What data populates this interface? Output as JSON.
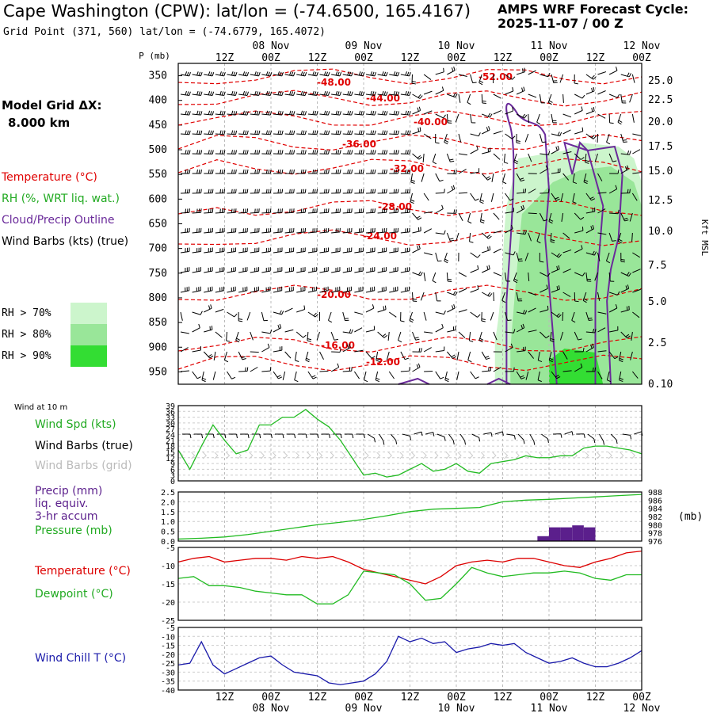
{
  "header": {
    "title": "Cape Washington (CPW):  lat/lon = (-74.6500, 165.4167)",
    "subtitle": "Grid Point (371, 560) lat/lon = (-74.6779, 165.4072)",
    "cycle_line1": "AMPS WRF Forecast Cycle:",
    "cycle_line2": "2025-11-07 / 00  Z"
  },
  "sidebar": {
    "grid_label": "Model Grid ΔX:",
    "grid_value": "8.000 km",
    "legend": [
      {
        "label": "Temperature (°C)",
        "color": "#e00000"
      },
      {
        "label": "RH (%, WRT liq. wat.)",
        "color": "#22aa22"
      },
      {
        "label": "Cloud/Precip Outline",
        "color": "#6a2a9a"
      },
      {
        "label": "Wind Barbs (kts) (true)",
        "color": "#000000"
      }
    ],
    "rh_key": [
      {
        "label": "RH > 70%",
        "color": "#ccf5cc"
      },
      {
        "label": "RH > 80%",
        "color": "#99e699"
      },
      {
        "label": "RH > 90%",
        "color": "#33dd33"
      }
    ]
  },
  "chart_data": [
    {
      "type": "cross-section",
      "id": "upper",
      "title": "P (mb)",
      "xlabel": "time",
      "ylabel": "P (mb)",
      "right_axis_label": "Kft MSL",
      "x_ticks_top": [
        "12Z",
        "00Z",
        "12Z",
        "00Z",
        "12Z",
        "00Z",
        "12Z",
        "00Z",
        "12Z",
        "00Z"
      ],
      "date_labels_top": [
        "08 Nov",
        "09 Nov",
        "10 Nov",
        "11 Nov",
        "12 Nov"
      ],
      "pressure_levels": [
        350,
        400,
        450,
        500,
        550,
        600,
        650,
        700,
        750,
        800,
        850,
        900,
        950
      ],
      "kft_ticks": [
        "25.0",
        "22.5",
        "20.0",
        "17.5",
        "15.0",
        "12.5",
        "10.0",
        "7.5",
        "5.0",
        "2.5",
        "0.10"
      ],
      "isotherm_labels": [
        "-48.00",
        "-52.00",
        "-44.00",
        "-40.00",
        "-36.00",
        "-32.00",
        "-28.00",
        "-24.00",
        "-20.00",
        "-16.00",
        "-12.00"
      ]
    },
    {
      "type": "line",
      "id": "wind",
      "label": "Wind at 10 m",
      "legend": [
        "Wind Spd (kts)",
        "Wind Barbs (true)",
        "Wind Barbs (grid)"
      ],
      "y_ticks": [
        "39",
        "36",
        "33",
        "30",
        "27",
        "24",
        "21",
        "18",
        "15",
        "12",
        "9",
        "6",
        "3",
        "0"
      ],
      "ylim": [
        0,
        39
      ],
      "x": [
        0,
        3,
        6,
        9,
        12,
        15,
        18,
        21,
        24,
        27,
        30,
        33,
        36,
        39,
        42,
        45,
        48,
        51,
        54,
        57,
        60,
        63,
        66,
        69,
        72,
        75,
        78,
        81,
        84,
        87,
        90,
        93,
        96,
        99,
        102,
        105,
        108,
        111,
        114,
        117,
        120
      ],
      "series": [
        {
          "name": "Wind Spd (kts)",
          "color": "#22bb22",
          "values": [
            16,
            6,
            18,
            29,
            21,
            14,
            16,
            29,
            29,
            33,
            33,
            37,
            32,
            28,
            21,
            12,
            3,
            4,
            2,
            3,
            6,
            9,
            5,
            6,
            9,
            5,
            4,
            9,
            10,
            11,
            13,
            12,
            12,
            13,
            13,
            17,
            18,
            18,
            17,
            16,
            14
          ]
        }
      ]
    },
    {
      "type": "bar+line",
      "id": "precip",
      "legend": [
        "Precip (mm)",
        "liq. equiv.",
        "3-hr accum",
        "Pressure (mb)"
      ],
      "y_ticks_left": [
        "2.5",
        "2.0",
        "1.5",
        "1.0",
        "0.5",
        "0.0"
      ],
      "y_ticks_right": [
        "988",
        "986",
        "984",
        "982",
        "980",
        "978",
        "976"
      ],
      "right_unit": "(mb)",
      "ylim_left": [
        0,
        2.5
      ],
      "ylim_right": [
        976,
        988
      ],
      "precip": {
        "name": "Precip (mm)",
        "color": "#5b1f8c",
        "x": [
          93,
          96,
          99,
          102,
          105,
          108
        ],
        "values": [
          0.25,
          0.7,
          0.7,
          0.8,
          0.7,
          0.0
        ]
      },
      "pressure": {
        "name": "Pressure (mb)",
        "color": "#22bb22",
        "x": [
          0,
          6,
          12,
          18,
          24,
          30,
          36,
          42,
          48,
          54,
          60,
          66,
          72,
          78,
          84,
          90,
          96,
          102,
          108,
          114,
          120
        ],
        "values": [
          976.5,
          976.7,
          977.0,
          977.6,
          978.4,
          979.2,
          980.0,
          980.6,
          981.3,
          982.2,
          983.2,
          983.8,
          984.0,
          984.2,
          985.6,
          986.0,
          986.2,
          986.5,
          986.8,
          987.1,
          987.4
        ]
      }
    },
    {
      "type": "line",
      "id": "tempdew",
      "legend": [
        "Temperature (°C)",
        "Dewpoint (°C)"
      ],
      "y_ticks": [
        "-5",
        "-10",
        "-15",
        "-20",
        "-25"
      ],
      "ylim": [
        -25,
        -5
      ],
      "x": [
        0,
        4,
        8,
        12,
        16,
        20,
        24,
        28,
        32,
        36,
        40,
        44,
        48,
        52,
        56,
        60,
        64,
        68,
        72,
        76,
        80,
        84,
        88,
        92,
        96,
        100,
        104,
        108,
        112,
        116,
        120
      ],
      "series": [
        {
          "name": "Temperature (°C)",
          "color": "#dd0000",
          "values": [
            -9,
            -8,
            -7.5,
            -9,
            -8.5,
            -8,
            -8,
            -8.5,
            -7.5,
            -8,
            -7.5,
            -9,
            -11,
            -12,
            -13,
            -14,
            -15,
            -13,
            -10,
            -9,
            -8.5,
            -9,
            -8,
            -8,
            -9,
            -10,
            -10.5,
            -9,
            -8,
            -6.5,
            -6
          ]
        },
        {
          "name": "Dewpoint (°C)",
          "color": "#22bb22",
          "values": [
            -13.5,
            -13,
            -15.5,
            -15.5,
            -16,
            -17,
            -17.5,
            -18,
            -18,
            -20.5,
            -20.5,
            -18,
            -11.5,
            -12,
            -12.5,
            -15,
            -19.5,
            -19,
            -15,
            -10.5,
            -12,
            -13,
            -12.5,
            -12,
            -12,
            -11.5,
            -12,
            -13.5,
            -14,
            -12.5,
            -12.5
          ]
        }
      ]
    },
    {
      "type": "line",
      "id": "windchill",
      "legend": [
        "Wind Chill T (°C)"
      ],
      "y_ticks": [
        "-5",
        "-10",
        "-15",
        "-20",
        "-25",
        "-30",
        "-35",
        "-40"
      ],
      "ylim": [
        -40,
        -5
      ],
      "x_ticks_bottom": [
        "12Z",
        "00Z",
        "12Z",
        "00Z",
        "12Z",
        "00Z",
        "12Z",
        "00Z",
        "12Z",
        "00Z"
      ],
      "date_labels_bottom": [
        "08 Nov",
        "09 Nov",
        "10 Nov",
        "11 Nov",
        "12 Nov"
      ],
      "x": [
        0,
        3,
        6,
        9,
        12,
        15,
        18,
        21,
        24,
        27,
        30,
        33,
        36,
        39,
        42,
        45,
        48,
        51,
        54,
        57,
        60,
        63,
        66,
        69,
        72,
        75,
        78,
        81,
        84,
        87,
        90,
        93,
        96,
        99,
        102,
        105,
        108,
        111,
        114,
        117,
        120
      ],
      "series": [
        {
          "name": "Wind Chill T (°C)",
          "color": "#1a1aaa",
          "values": [
            -26,
            -25,
            -13,
            -26,
            -31,
            -28,
            -25,
            -22,
            -21,
            -26,
            -30,
            -31,
            -32,
            -36,
            -37,
            -36,
            -35,
            -31,
            -24,
            -10,
            -13,
            -11,
            -14,
            -13,
            -19,
            -17,
            -16,
            -14,
            -15,
            -14,
            -19,
            -22,
            -25,
            -24,
            -22,
            -25,
            -27,
            -27,
            -25,
            -22,
            -18
          ]
        }
      ]
    }
  ]
}
